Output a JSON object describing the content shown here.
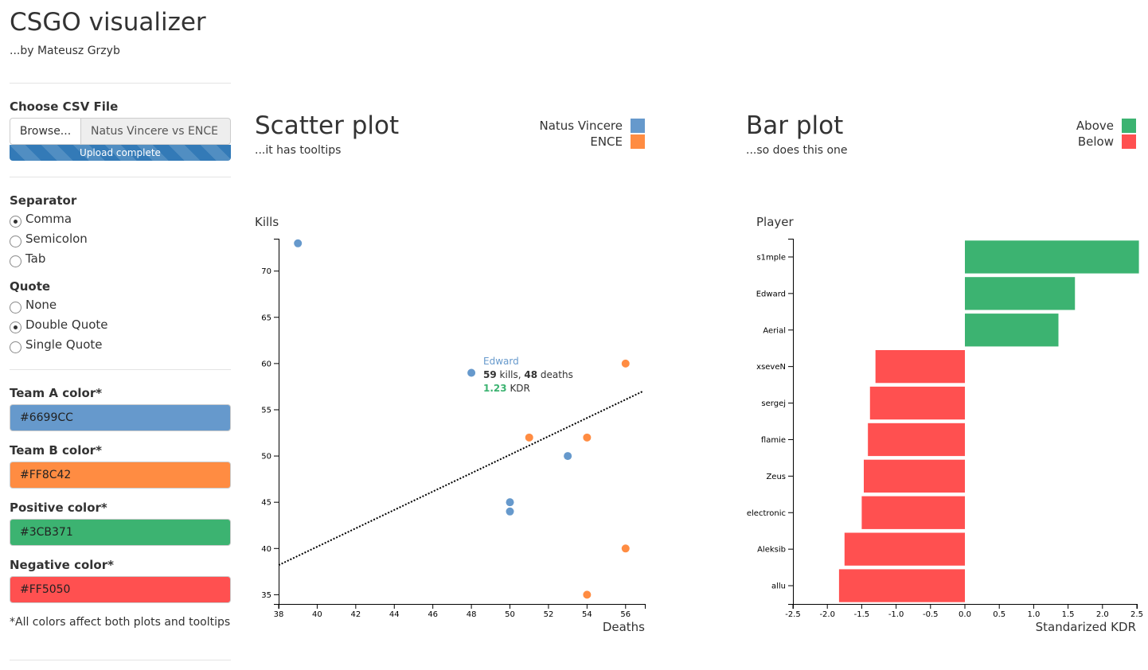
{
  "header": {
    "title": "CSGO visualizer",
    "subtitle": "...by Mateusz Grzyb"
  },
  "file": {
    "label": "Choose CSV File",
    "browse_label": "Browse...",
    "file_name": "Natus Vincere vs ENCE",
    "progress_label": "Upload complete",
    "progress": 100
  },
  "separator": {
    "label": "Separator",
    "options": [
      "Comma",
      "Semicolon",
      "Tab"
    ],
    "selected": "Comma"
  },
  "quote": {
    "label": "Quote",
    "options": [
      "None",
      "Double Quote",
      "Single Quote"
    ],
    "selected": "Double Quote"
  },
  "colors": [
    {
      "label": "Team A color*",
      "value": "#6699CC"
    },
    {
      "label": "Team B color*",
      "value": "#FF8C42"
    },
    {
      "label": "Positive color*",
      "value": "#3CB371"
    },
    {
      "label": "Negative color*",
      "value": "#FF5050"
    }
  ],
  "note": "*All colors affect both plots and tooltips",
  "scatter": {
    "title": "Scatter plot",
    "subtitle": "...it has tooltips",
    "legend": [
      {
        "name": "Natus Vincere",
        "color": "#6699CC"
      },
      {
        "name": "ENCE",
        "color": "#FF8C42"
      }
    ]
  },
  "tooltip": {
    "name": "Edward",
    "kills": "59",
    "kills_label": "kills,",
    "deaths": "48",
    "deaths_label": "deaths",
    "kdr": "1.23",
    "kdr_label": "KDR"
  },
  "bar": {
    "title": "Bar plot",
    "subtitle": "...so does this one",
    "legend": [
      {
        "name": "Above",
        "color": "#3CB371"
      },
      {
        "name": "Below",
        "color": "#FF5050"
      }
    ]
  },
  "chart_data": [
    {
      "type": "scatter",
      "xlabel": "Deaths",
      "ylabel": "Kills",
      "xlim": [
        38,
        57
      ],
      "ylim": [
        34,
        73.5
      ],
      "xticks": [
        38,
        40,
        42,
        44,
        46,
        48,
        50,
        52,
        54,
        56
      ],
      "yticks": [
        35,
        40,
        45,
        50,
        55,
        60,
        65,
        70
      ],
      "trendline": [
        [
          38,
          38.2
        ],
        [
          56.9,
          57.0
        ]
      ],
      "series": [
        {
          "name": "Natus Vincere",
          "color": "#6699CC",
          "points": [
            [
              39,
              73
            ],
            [
              48,
              59
            ],
            [
              50,
              45
            ],
            [
              50,
              44
            ],
            [
              53,
              50
            ]
          ]
        },
        {
          "name": "ENCE",
          "color": "#FF8C42",
          "points": [
            [
              51,
              52
            ],
            [
              54,
              52
            ],
            [
              56,
              60
            ],
            [
              56,
              40
            ],
            [
              54,
              35
            ]
          ]
        }
      ]
    },
    {
      "type": "bar",
      "orientation": "horizontal",
      "xlabel": "Standarized KDR",
      "ylabel": "Player",
      "xlim": [
        -2.5,
        2.5
      ],
      "xticks": [
        -2.5,
        -2.0,
        -1.5,
        -1.0,
        -0.5,
        0.0,
        0.5,
        1.0,
        1.5,
        2.0,
        2.5
      ],
      "categories": [
        "s1mple",
        "Edward",
        "Aerial",
        "xseveN",
        "sergej",
        "flamie",
        "Zeus",
        "electronic",
        "Aleksib",
        "allu"
      ],
      "values": [
        2.53,
        1.6,
        1.36,
        -1.3,
        -1.38,
        -1.41,
        -1.47,
        -1.5,
        -1.75,
        -1.83
      ],
      "positive_color": "#3CB371",
      "negative_color": "#FF5050"
    }
  ]
}
